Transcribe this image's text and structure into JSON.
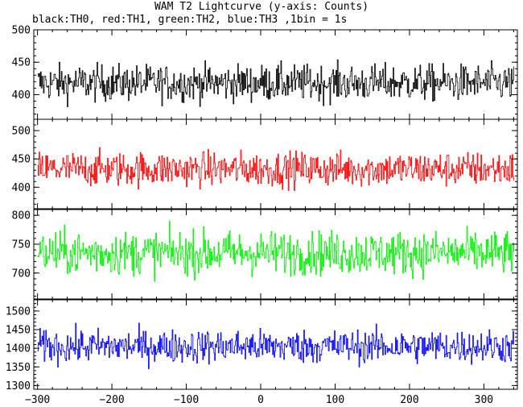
{
  "title": "WAM T2 Lightcurve (y-axis: Counts)",
  "subtitle": "black:TH0, red:TH1, green:TH2, blue:TH3 ,1bin = 1s",
  "chart_data": {
    "type": "line",
    "x": {
      "start": -300,
      "end": 340,
      "step": 1
    },
    "xlim": [
      -305,
      345
    ],
    "xticks": [
      -300,
      -200,
      -100,
      0,
      100,
      200,
      300
    ],
    "grid": false,
    "panels": [
      {
        "name": "TH0",
        "color": "#000000",
        "ylim": [
          362,
          500
        ],
        "yticks": [
          400,
          450,
          500
        ],
        "mean": 418,
        "noise": 24,
        "min": 366,
        "max": 498
      },
      {
        "name": "TH1",
        "color": "#ff0000",
        "ylim": [
          362,
          520
        ],
        "yticks": [
          400,
          450,
          500
        ],
        "mean": 432,
        "noise": 26,
        "min": 380,
        "max": 515
      },
      {
        "name": "TH2",
        "color": "#00ee00",
        "ylim": [
          655,
          810
        ],
        "yticks": [
          700,
          750,
          800
        ],
        "mean": 735,
        "noise": 32,
        "min": 660,
        "max": 810
      },
      {
        "name": "TH3",
        "color": "#0000ff",
        "ylim": [
          1290,
          1530
        ],
        "yticks": [
          1300,
          1350,
          1400,
          1450,
          1500
        ],
        "mean": 1405,
        "noise": 38,
        "min": 1295,
        "max": 1525
      }
    ]
  }
}
